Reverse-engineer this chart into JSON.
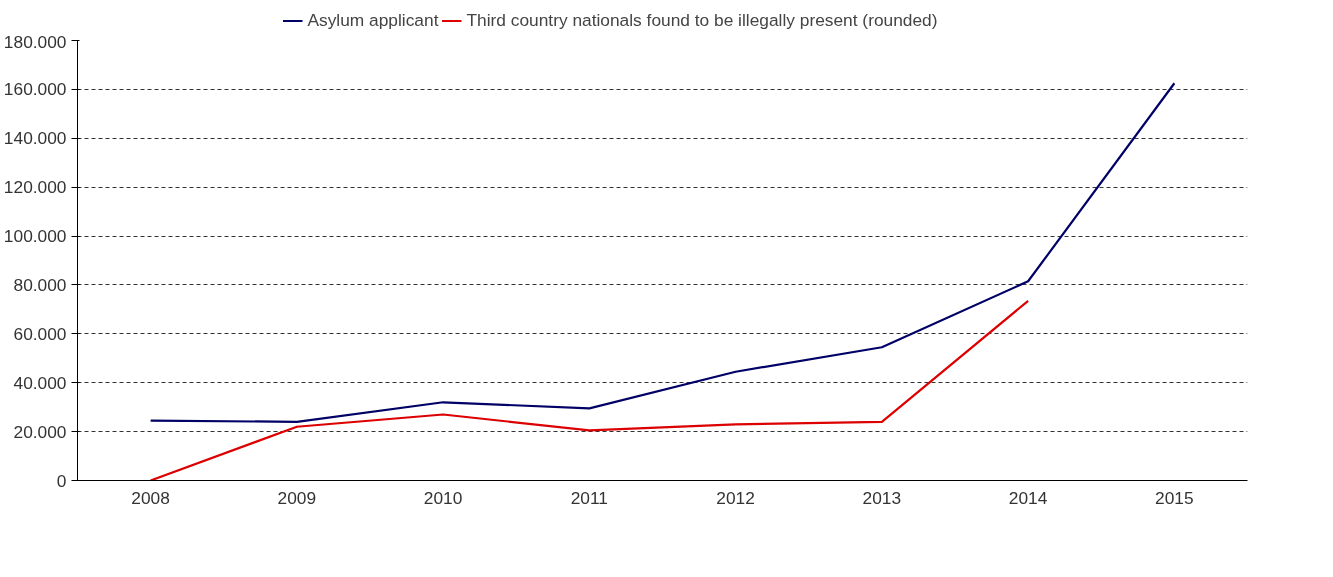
{
  "chart_data": {
    "type": "line",
    "categories": [
      "2008",
      "2009",
      "2010",
      "2011",
      "2012",
      "2013",
      "2014",
      "2015"
    ],
    "series": [
      {
        "name": "Asylum applicant",
        "color": "#000066",
        "values": [
          24500,
          24000,
          32000,
          29500,
          44500,
          54500,
          81500,
          162500
        ]
      },
      {
        "name": "Third country nationals found to be illegally present (rounded)",
        "color": "#dd0000",
        "values": [
          0,
          22000,
          27000,
          20500,
          23000,
          24000,
          73500,
          null
        ]
      }
    ],
    "ylim": [
      0,
      180000
    ],
    "yticks": [
      {
        "value": 0,
        "label": "0"
      },
      {
        "value": 20000,
        "label": "20.000"
      },
      {
        "value": 40000,
        "label": "40.000"
      },
      {
        "value": 60000,
        "label": "60.000"
      },
      {
        "value": 80000,
        "label": "80.000"
      },
      {
        "value": 100000,
        "label": "100.000"
      },
      {
        "value": 120000,
        "label": "120.000"
      },
      {
        "value": 140000,
        "label": "140.000"
      },
      {
        "value": 160000,
        "label": "160.000"
      },
      {
        "value": 180000,
        "label": "180.000"
      }
    ],
    "grid": "y",
    "legend": "top",
    "line_style": "solid",
    "marker": "none"
  }
}
